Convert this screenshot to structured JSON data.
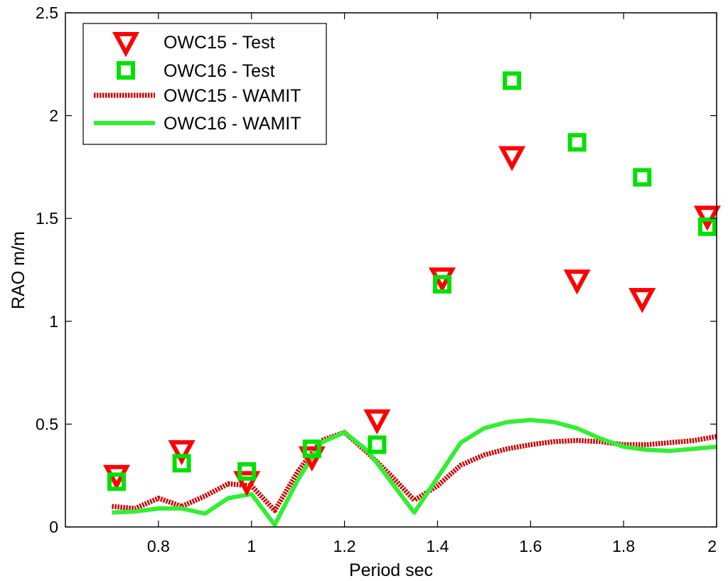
{
  "chart_data": {
    "type": "scatter",
    "title": "",
    "xlabel": "Period sec",
    "ylabel": "RAO m/m",
    "xlim": [
      0.6,
      2.0
    ],
    "ylim": [
      0,
      2.5
    ],
    "xticks": [
      0.8,
      1.0,
      1.2,
      1.4,
      1.6,
      1.8,
      2.0
    ],
    "xtick_labels": [
      "0.8",
      "1",
      "1.2",
      "1.4",
      "1.6",
      "1.8",
      "2"
    ],
    "yticks": [
      0,
      0.5,
      1.0,
      1.5,
      2.0,
      2.5
    ],
    "ytick_labels": [
      "0",
      "0.5",
      "1",
      "1.5",
      "2",
      "2.5"
    ],
    "grid": false,
    "legend_position": "top-left",
    "series": [
      {
        "name": "OWC15 - Test",
        "kind": "marker",
        "marker": "triangle-down",
        "color": "#ff0000",
        "x": [
          0.71,
          0.85,
          0.99,
          1.13,
          1.27,
          1.41,
          1.56,
          1.7,
          1.84,
          1.98
        ],
        "y": [
          0.25,
          0.37,
          0.22,
          0.34,
          0.52,
          1.21,
          1.8,
          1.2,
          1.11,
          1.51
        ]
      },
      {
        "name": "OWC16 - Test",
        "kind": "marker",
        "marker": "square",
        "color": "#00e000",
        "x": [
          0.71,
          0.85,
          0.99,
          1.13,
          1.27,
          1.41,
          1.56,
          1.7,
          1.84,
          1.98
        ],
        "y": [
          0.22,
          0.31,
          0.27,
          0.38,
          0.4,
          1.18,
          2.17,
          1.87,
          1.7,
          1.46
        ]
      },
      {
        "name": "OWC15 - WAMIT",
        "kind": "line",
        "dash": "dotted",
        "color": "#cc0000",
        "x": [
          0.7,
          0.75,
          0.8,
          0.85,
          0.9,
          0.95,
          1.0,
          1.05,
          1.1,
          1.15,
          1.2,
          1.25,
          1.3,
          1.35,
          1.4,
          1.45,
          1.5,
          1.55,
          1.6,
          1.65,
          1.7,
          1.75,
          1.8,
          1.85,
          1.9,
          1.95,
          2.0
        ],
        "y": [
          0.1,
          0.09,
          0.14,
          0.1,
          0.15,
          0.21,
          0.2,
          0.08,
          0.27,
          0.42,
          0.46,
          0.36,
          0.25,
          0.13,
          0.2,
          0.3,
          0.35,
          0.38,
          0.4,
          0.415,
          0.42,
          0.415,
          0.4,
          0.4,
          0.41,
          0.42,
          0.44
        ]
      },
      {
        "name": "OWC16 - WAMIT",
        "kind": "line",
        "dash": "solid",
        "color": "#33ee33",
        "x": [
          0.7,
          0.75,
          0.8,
          0.85,
          0.9,
          0.95,
          1.0,
          1.05,
          1.1,
          1.15,
          1.2,
          1.25,
          1.3,
          1.35,
          1.4,
          1.45,
          1.5,
          1.55,
          1.6,
          1.65,
          1.7,
          1.75,
          1.8,
          1.85,
          1.9,
          1.95,
          2.0
        ],
        "y": [
          0.07,
          0.075,
          0.09,
          0.09,
          0.065,
          0.14,
          0.16,
          0.01,
          0.23,
          0.41,
          0.46,
          0.37,
          0.22,
          0.07,
          0.24,
          0.41,
          0.48,
          0.51,
          0.52,
          0.51,
          0.48,
          0.43,
          0.39,
          0.375,
          0.37,
          0.38,
          0.39
        ]
      }
    ]
  }
}
